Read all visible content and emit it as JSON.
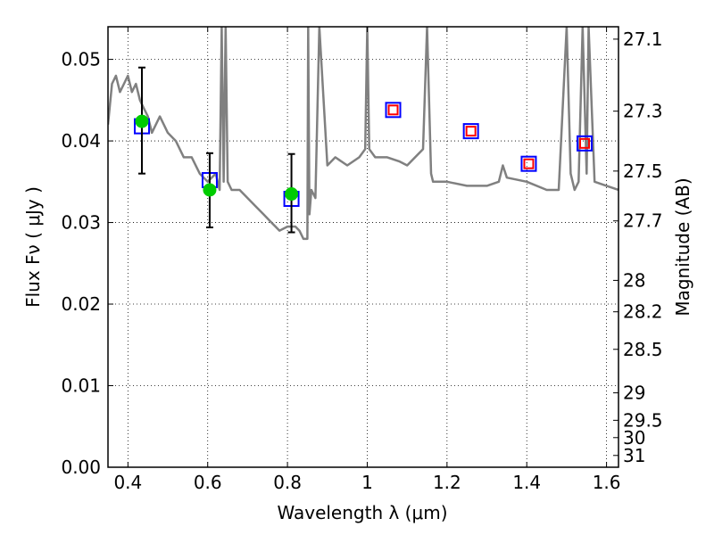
{
  "chart_data": {
    "type": "scatter",
    "xlabel": "Wavelength  λ (μm)",
    "ylabel": "Flux  Fν  ( μJy )",
    "y2label": "Magnitude (AB)",
    "xlim": [
      0.35,
      1.63
    ],
    "ylim": [
      0.0,
      0.054
    ],
    "grid": true,
    "x_ticks": [
      0.4,
      0.6,
      0.8,
      1.0,
      1.2,
      1.4,
      1.6
    ],
    "x_tick_labels": [
      "0.4",
      "0.6",
      "0.8",
      "1",
      "1.2",
      "1.4",
      "1.6"
    ],
    "y_ticks": [
      0.0,
      0.01,
      0.02,
      0.03,
      0.04,
      0.05
    ],
    "y_tick_labels": [
      "0.00",
      "0.01",
      "0.02",
      "0.03",
      "0.04",
      "0.05"
    ],
    "y2_ticks": [
      {
        "label": "27.1",
        "mag": 27.1
      },
      {
        "label": "27.3",
        "mag": 27.3
      },
      {
        "label": "27.5",
        "mag": 27.5
      },
      {
        "label": "27.7",
        "mag": 27.7
      },
      {
        "label": "28",
        "mag": 28.0
      },
      {
        "label": "28.2",
        "mag": 28.2
      },
      {
        "label": "28.5",
        "mag": 28.5
      },
      {
        "label": "29",
        "mag": 29.0
      },
      {
        "label": "29.5",
        "mag": 29.5
      },
      {
        "label": "30",
        "mag": 30.0
      },
      {
        "label": "31",
        "mag": 31.0
      }
    ],
    "series": [
      {
        "kind": "line",
        "color": "#808080",
        "x": [
          0.35,
          0.36,
          0.37,
          0.38,
          0.39,
          0.4,
          0.41,
          0.42,
          0.43,
          0.44,
          0.45,
          0.46,
          0.47,
          0.48,
          0.49,
          0.5,
          0.52,
          0.54,
          0.56,
          0.58,
          0.6,
          0.62,
          0.63,
          0.635,
          0.64,
          0.645,
          0.65,
          0.66,
          0.68,
          0.7,
          0.72,
          0.74,
          0.76,
          0.78,
          0.8,
          0.82,
          0.83,
          0.84,
          0.85,
          0.852,
          0.855,
          0.86,
          0.87,
          0.88,
          0.9,
          0.92,
          0.95,
          0.98,
          0.995,
          1.0,
          1.005,
          1.02,
          1.05,
          1.08,
          1.1,
          1.12,
          1.14,
          1.15,
          1.16,
          1.165,
          1.18,
          1.2,
          1.25,
          1.3,
          1.33,
          1.34,
          1.35,
          1.4,
          1.45,
          1.48,
          1.5,
          1.51,
          1.52,
          1.53,
          1.54,
          1.55,
          1.555,
          1.57,
          1.6,
          1.63
        ],
        "y": [
          0.042,
          0.047,
          0.048,
          0.046,
          0.047,
          0.048,
          0.046,
          0.047,
          0.045,
          0.044,
          0.043,
          0.041,
          0.042,
          0.043,
          0.042,
          0.041,
          0.04,
          0.038,
          0.038,
          0.036,
          0.035,
          0.036,
          0.034,
          0.054,
          0.035,
          0.054,
          0.035,
          0.034,
          0.034,
          0.033,
          0.032,
          0.031,
          0.03,
          0.029,
          0.0295,
          0.0295,
          0.029,
          0.028,
          0.028,
          0.054,
          0.031,
          0.034,
          0.033,
          0.054,
          0.037,
          0.038,
          0.037,
          0.038,
          0.039,
          0.054,
          0.039,
          0.038,
          0.038,
          0.0375,
          0.037,
          0.038,
          0.039,
          0.054,
          0.036,
          0.035,
          0.035,
          0.035,
          0.0345,
          0.0345,
          0.035,
          0.037,
          0.0355,
          0.035,
          0.034,
          0.034,
          0.054,
          0.036,
          0.034,
          0.035,
          0.054,
          0.036,
          0.054,
          0.035,
          0.0345,
          0.034
        ]
      },
      {
        "kind": "open-square",
        "color": "#0000ff",
        "x": [
          0.435,
          0.605,
          0.81,
          1.065,
          1.26,
          1.405,
          1.545
        ],
        "y": [
          0.0418,
          0.0352,
          0.0329,
          0.0438,
          0.0412,
          0.0372,
          0.0397
        ]
      },
      {
        "kind": "open-square-small",
        "color": "#ff0000",
        "x": [
          1.065,
          1.26,
          1.405,
          1.545
        ],
        "y": [
          0.0438,
          0.0412,
          0.0372,
          0.0397
        ]
      },
      {
        "kind": "points-errorbars",
        "color": "#00cc00",
        "x": [
          0.435,
          0.605,
          0.81
        ],
        "y": [
          0.0424,
          0.034,
          0.0335
        ],
        "err_low": [
          0.036,
          0.0294,
          0.0288
        ],
        "err_high": [
          0.049,
          0.0385,
          0.0384
        ]
      }
    ]
  }
}
